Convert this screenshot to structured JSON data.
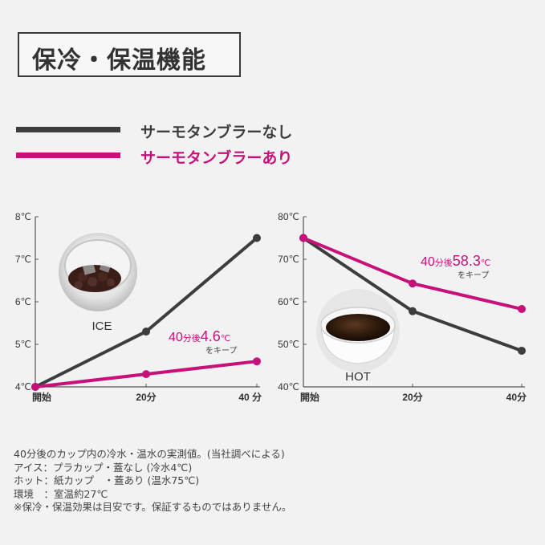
{
  "title": "保冷・保温機能",
  "legend": [
    {
      "label": "サーモタンブラーなし",
      "color": "#3d3d3d"
    },
    {
      "label": "サーモタンブラーあり",
      "color": "#c8107a"
    }
  ],
  "chart_data": [
    {
      "type": "line",
      "photo_label": "ICE",
      "x": [
        "開始",
        "20分",
        "40 分"
      ],
      "ylim": [
        4,
        8
      ],
      "yticks": [
        "4℃",
        "5℃",
        "6℃",
        "7℃",
        "8℃"
      ],
      "series": [
        {
          "name": "サーモタンブラーなし",
          "values": [
            4,
            5.3,
            7.5
          ],
          "color": "#3d3d3d"
        },
        {
          "name": "サーモタンブラーあり",
          "values": [
            4,
            4.3,
            4.6
          ],
          "color": "#c8107a"
        }
      ],
      "annotation": {
        "prefix": "40",
        "unit": "分後",
        "value": "4.6",
        "deg": "℃",
        "suffix": "をキープ"
      }
    },
    {
      "type": "line",
      "photo_label": "HOT",
      "x": [
        "開始",
        "20分",
        "40分"
      ],
      "ylim": [
        40,
        80
      ],
      "yticks": [
        "40℃",
        "50℃",
        "60℃",
        "70℃",
        "80℃"
      ],
      "series": [
        {
          "name": "サーモタンブラーなし",
          "values": [
            75,
            57.8,
            48.5
          ],
          "color": "#3d3d3d"
        },
        {
          "name": "サーモタンブラーあり",
          "values": [
            75,
            64.3,
            58.3
          ],
          "color": "#c8107a"
        }
      ],
      "annotation": {
        "prefix": "40",
        "unit": "分後",
        "value": "58.3",
        "deg": "℃",
        "suffix": "をキープ"
      }
    }
  ],
  "notes": [
    "40分後のカップ内の冷水・温水の実測値。(当社調べによる)",
    "アイス：プラカップ・蓋なし (冷水4℃)",
    "ホット：紙カップ　・蓋あり (温水75℃)",
    "環境　：室温約27℃",
    "※保冷・保温効果は目安です。保証するものではありません。"
  ]
}
